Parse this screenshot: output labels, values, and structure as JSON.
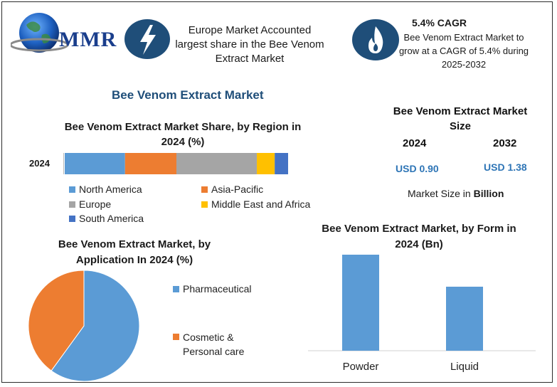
{
  "header": {
    "logo_text": "MMR",
    "highlight1": "Europe Market Accounted largest share in the Bee Venom Extract Market",
    "cagr_title": "5.4% CAGR",
    "cagr_text": "Bee Venom Extract Market to grow at a CAGR of 5.4% during 2025-2032",
    "icon1": "lightning-bolt-icon",
    "icon2": "flame-icon"
  },
  "main_title": "Bee Venom Extract Market",
  "colors": {
    "north_america": "#5b9bd5",
    "asia_pacific": "#ed7d31",
    "europe": "#a5a5a5",
    "middle_east_africa": "#ffc000",
    "south_america": "#4472c4",
    "accent": "#1f4e79"
  },
  "market_size": {
    "title": "Bee Venom Extract Market Size",
    "year1": "2024",
    "year2": "2032",
    "value1": "USD 0.90",
    "value2": "USD 1.38",
    "unit_note_prefix": "Market Size in ",
    "unit_note_bold": "Billion"
  },
  "chart_data": [
    {
      "type": "bar",
      "orientation": "horizontal-stacked",
      "title": "Bee Venom Extract Market Share, by Region in 2024 (%)",
      "categories": [
        "2024"
      ],
      "series": [
        {
          "name": "North America",
          "values": [
            27
          ]
        },
        {
          "name": "Asia-Pacific",
          "values": [
            23
          ]
        },
        {
          "name": "Europe",
          "values": [
            36
          ]
        },
        {
          "name": "Middle East and Africa",
          "values": [
            8
          ]
        },
        {
          "name": "South America",
          "values": [
            6
          ]
        }
      ],
      "legend": "bottom"
    },
    {
      "type": "pie",
      "title": "Bee Venom Extract Market, by Application In 2024 (%)",
      "labels": [
        "Pharmaceutical",
        "Cosmetic & Personal care"
      ],
      "values": [
        60,
        40
      ],
      "legend": "right"
    },
    {
      "type": "bar",
      "title": "Bee Venom Extract Market, by Form in 2024 (Bn)",
      "categories": [
        "Powder",
        "Liquid"
      ],
      "values": [
        0.54,
        0.36
      ],
      "ylim": [
        0,
        0.6
      ]
    }
  ]
}
